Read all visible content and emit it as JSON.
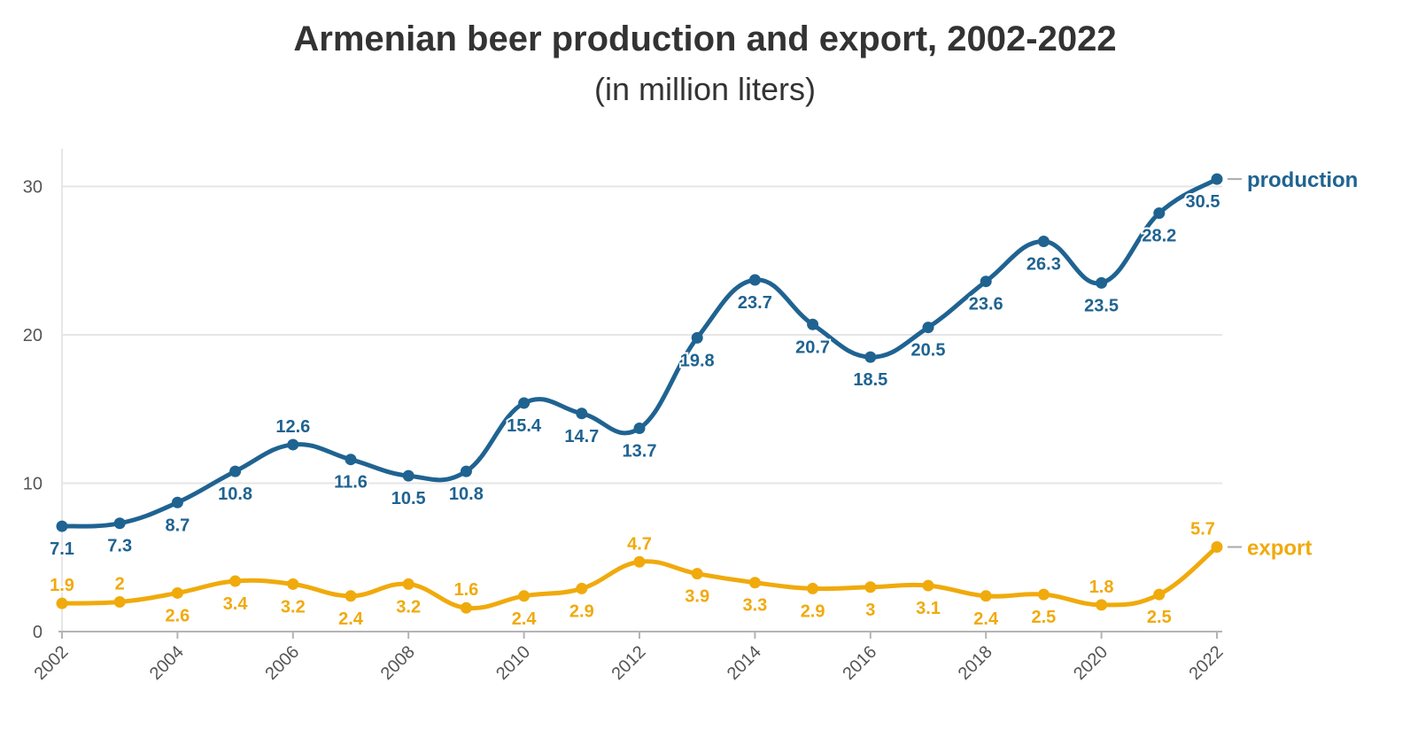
{
  "title": "Armenian beer production and export, 2002-2022",
  "subtitle": "(in million liters)",
  "colors": {
    "production": "#1f6391",
    "export": "#f0aa0c",
    "grid": "#e6e6e6",
    "axis": "#b4b4b4"
  },
  "chart_data": {
    "type": "line",
    "x": [
      2002,
      2003,
      2004,
      2005,
      2006,
      2007,
      2008,
      2009,
      2010,
      2011,
      2012,
      2013,
      2014,
      2015,
      2016,
      2017,
      2018,
      2019,
      2020,
      2021,
      2022
    ],
    "x_ticks": [
      "2002",
      "2004",
      "2006",
      "2008",
      "2010",
      "2012",
      "2014",
      "2016",
      "2018",
      "2020",
      "2022"
    ],
    "y_ticks": [
      "0",
      "10",
      "20",
      "30"
    ],
    "ylim": [
      0,
      32.5
    ],
    "grid": true,
    "curve": "smooth",
    "series": [
      {
        "name": "production",
        "color": "#1f6391",
        "values": [
          7.1,
          7.3,
          8.7,
          10.8,
          12.6,
          11.6,
          10.5,
          10.8,
          15.4,
          14.7,
          13.7,
          19.8,
          23.7,
          20.7,
          18.5,
          20.5,
          23.6,
          26.3,
          23.5,
          28.2,
          30.5
        ],
        "labels": [
          "7.1",
          "7.3",
          "8.7",
          "10.8",
          "12.6",
          "11.6",
          "10.5",
          "10.8",
          "15.4",
          "14.7",
          "13.7",
          "19.8",
          "23.7",
          "20.7",
          "18.5",
          "20.5",
          "23.6",
          "26.3",
          "23.5",
          "28.2",
          "30.5"
        ]
      },
      {
        "name": "export",
        "color": "#f0aa0c",
        "values": [
          1.9,
          2,
          2.6,
          3.4,
          3.2,
          2.4,
          3.2,
          1.6,
          2.4,
          2.9,
          4.7,
          3.9,
          3.3,
          2.9,
          3,
          3.1,
          2.4,
          2.5,
          1.8,
          2.5,
          5.7
        ],
        "labels": [
          "1.9",
          "2",
          "2.6",
          "3.4",
          "3.2",
          "2.4",
          "3.2",
          "1.6",
          "2.4",
          "2.9",
          "4.7",
          "3.9",
          "3.3",
          "2.9",
          "3",
          "3.1",
          "2.4",
          "2.5",
          "1.8",
          "2.5",
          "5.7"
        ]
      }
    ]
  }
}
